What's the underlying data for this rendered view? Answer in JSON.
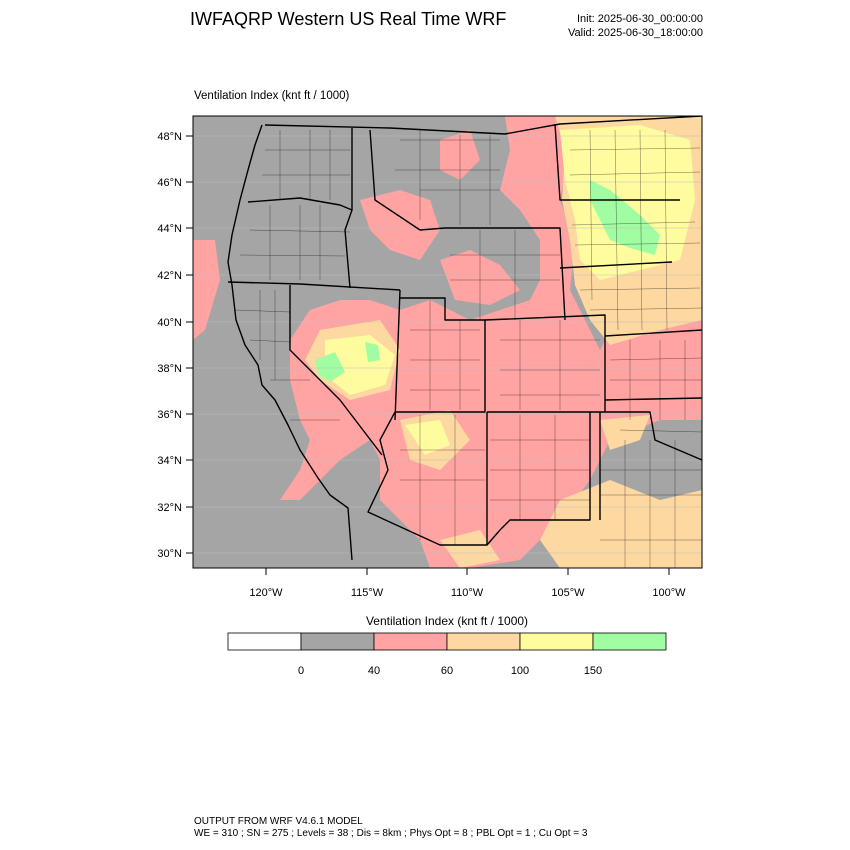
{
  "header": {
    "title": "IWFAQRP Western US Real Time WRF",
    "init": "Init: 2025-06-30_00:00:00",
    "valid": "Valid: 2025-06-30_18:00:00"
  },
  "field": {
    "label": "Ventilation Index   (knt ft / 1000)"
  },
  "axes": {
    "lat_labels": [
      "48°N",
      "46°N",
      "44°N",
      "42°N",
      "40°N",
      "38°N",
      "36°N",
      "34°N",
      "32°N",
      "30°N"
    ],
    "lon_labels": [
      "120°W",
      "115°W",
      "110°W",
      "105°W",
      "100°W"
    ]
  },
  "legend": {
    "title": "Ventilation Index   (knt ft / 1000)",
    "bins": [
      {
        "color": "#ffffff"
      },
      {
        "color": "#a5a5a5"
      },
      {
        "color": "#ffa3a3"
      },
      {
        "color": "#fdd9a1"
      },
      {
        "color": "#fffca0"
      },
      {
        "color": "#a0fda2"
      }
    ],
    "thresholds": [
      "0",
      "40",
      "60",
      "100",
      "150"
    ]
  },
  "colors": {
    "lt40": "#a5a5a5",
    "c40_60": "#ffa3a3",
    "c60_100": "#fdd9a1",
    "c100_150": "#fffca0",
    "gt150": "#a0fda2",
    "boundary": "#000000"
  },
  "footer": {
    "line1": "OUTPUT FROM WRF V4.6.1 MODEL",
    "line2": "WE = 310 ; SN = 275 ; Levels = 38 ; Dis = 8km ; Phys Opt = 8 ; PBL Opt = 1 ; Cu Opt = 3"
  }
}
